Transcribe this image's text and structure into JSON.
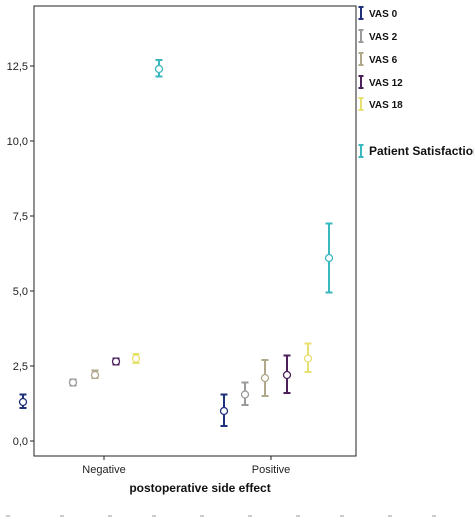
{
  "chart_data": {
    "type": "scatter",
    "subtype": "error-bar",
    "title": "",
    "xlabel": "postoperative side effect",
    "ylabel": "",
    "categories": [
      "Negative",
      "Positive"
    ],
    "ylim": [
      -0.5,
      14.5
    ],
    "yticks": [
      0,
      2.5,
      5,
      7.5,
      10,
      12.5
    ],
    "ytick_labels": [
      "0,0",
      "2,5",
      "5,0",
      "7,5",
      "10,0",
      "12,5"
    ],
    "legend_placement": "right",
    "series": [
      {
        "name": "VAS 0",
        "color": "#1f2f7a",
        "points": [
          {
            "category": "Negative",
            "mean": 1.3,
            "low": 1.1,
            "high": 1.55
          },
          {
            "category": "Positive",
            "mean": 1.0,
            "low": 0.5,
            "high": 1.55
          }
        ]
      },
      {
        "name": "VAS 2",
        "color": "#9a9a9a",
        "points": [
          {
            "category": "Negative",
            "mean": 1.95,
            "low": 1.85,
            "high": 2.05
          },
          {
            "category": "Positive",
            "mean": 1.55,
            "low": 1.2,
            "high": 1.95
          }
        ]
      },
      {
        "name": "VAS 6",
        "color": "#b0a88a",
        "points": [
          {
            "category": "Negative",
            "mean": 2.2,
            "low": 2.1,
            "high": 2.35
          },
          {
            "category": "Positive",
            "mean": 2.1,
            "low": 1.5,
            "high": 2.7
          }
        ]
      },
      {
        "name": "VAS 12",
        "color": "#4a1f5a",
        "points": [
          {
            "category": "Negative",
            "mean": 2.65,
            "low": 2.55,
            "high": 2.75
          },
          {
            "category": "Positive",
            "mean": 2.2,
            "low": 1.6,
            "high": 2.85
          }
        ]
      },
      {
        "name": "VAS 18",
        "color": "#e8e070",
        "points": [
          {
            "category": "Negative",
            "mean": 2.75,
            "low": 2.6,
            "high": 2.9
          },
          {
            "category": "Positive",
            "mean": 2.75,
            "low": 2.3,
            "high": 3.25
          }
        ]
      },
      {
        "name": "Patient Satisfaction",
        "color": "#3ab8c0",
        "points": [
          {
            "category": "Negative",
            "mean": 12.4,
            "low": 12.15,
            "high": 12.7
          },
          {
            "category": "Positive",
            "mean": 6.1,
            "low": 4.95,
            "high": 7.25
          }
        ]
      }
    ]
  }
}
